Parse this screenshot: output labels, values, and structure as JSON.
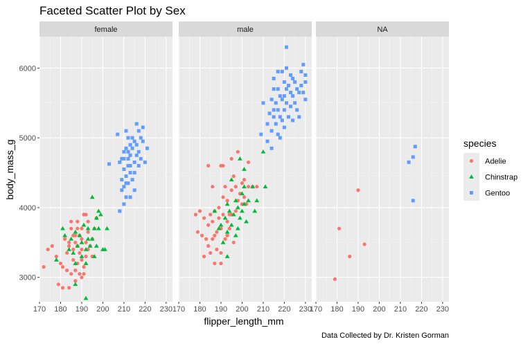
{
  "chart_data": {
    "type": "scatter",
    "title": "Faceted Scatter Plot by Sex",
    "xlabel": "flipper_length_mm",
    "ylabel": "body_mass_g",
    "caption": "Data Collected by Dr. Kristen Gorman",
    "legend_title": "species",
    "legend_position": "right",
    "grid": true,
    "xlim": [
      170,
      233
    ],
    "ylim": [
      2650,
      6450
    ],
    "x_ticks": [
      170,
      180,
      190,
      200,
      210,
      220,
      230
    ],
    "y_ticks": [
      3000,
      4000,
      5000,
      6000
    ],
    "species": [
      {
        "name": "Adelie",
        "color": "#F8766D",
        "shape": "circle"
      },
      {
        "name": "Chinstrap",
        "color": "#00BA38",
        "shape": "triangle"
      },
      {
        "name": "Gentoo",
        "color": "#619CFF",
        "shape": "square"
      }
    ],
    "facets": [
      {
        "label": "female",
        "series": {
          "Adelie": [
            [
              172,
              3150
            ],
            [
              174,
              3400
            ],
            [
              176,
              3450
            ],
            [
              178,
              3300
            ],
            [
              179,
              2900
            ],
            [
              180,
              3200
            ],
            [
              181,
              3150
            ],
            [
              181,
              2850
            ],
            [
              182,
              3550
            ],
            [
              183,
              3350
            ],
            [
              184,
              2850
            ],
            [
              184,
              3450
            ],
            [
              185,
              3700
            ],
            [
              185,
              3050
            ],
            [
              186,
              3600
            ],
            [
              186,
              3250
            ],
            [
              187,
              3500
            ],
            [
              187,
              3100
            ],
            [
              187,
              2950
            ],
            [
              188,
              3800
            ],
            [
              188,
              3450
            ],
            [
              188,
              3200
            ],
            [
              189,
              3600
            ],
            [
              189,
              3350
            ],
            [
              189,
              3050
            ],
            [
              190,
              3550
            ],
            [
              190,
              3400
            ],
            [
              190,
              3250
            ],
            [
              191,
              3900
            ],
            [
              191,
              3150
            ],
            [
              191,
              3050
            ],
            [
              192,
              3500
            ],
            [
              192,
              3300
            ],
            [
              193,
              3650
            ],
            [
              193,
              3800
            ],
            [
              194,
              3450
            ],
            [
              195,
              3300
            ],
            [
              196,
              3700
            ],
            [
              197,
              3850
            ],
            [
              193,
              3400
            ],
            [
              190,
              3700
            ],
            [
              186,
              3400
            ],
            [
              183,
              3100
            ],
            [
              185,
              3800
            ],
            [
              187,
              3600
            ],
            [
              190,
              3000
            ],
            [
              192,
              3900
            ],
            [
              188,
              3700
            ],
            [
              184,
              3500
            ],
            [
              195,
              3550
            ]
          ],
          "Chinstrap": [
            [
              178,
              3250
            ],
            [
              181,
              3700
            ],
            [
              182,
              3600
            ],
            [
              184,
              3400
            ],
            [
              185,
              3550
            ],
            [
              186,
              3350
            ],
            [
              187,
              3650
            ],
            [
              187,
              3200
            ],
            [
              188,
              3450
            ],
            [
              189,
              3600
            ],
            [
              190,
              3300
            ],
            [
              190,
              3500
            ],
            [
              191,
              3750
            ],
            [
              192,
              3200
            ],
            [
              192,
              3400
            ],
            [
              193,
              3550
            ],
            [
              193,
              3700
            ],
            [
              194,
              3450
            ],
            [
              195,
              4150
            ],
            [
              195,
              3550
            ],
            [
              196,
              3700
            ],
            [
              196,
              3300
            ],
            [
              197,
              3450
            ],
            [
              197,
              3850
            ],
            [
              198,
              3950
            ],
            [
              198,
              3700
            ],
            [
              199,
              3900
            ],
            [
              200,
              3400
            ],
            [
              201,
              3400
            ],
            [
              202,
              3700
            ],
            [
              192,
              2700
            ],
            [
              187,
              2900
            ]
          ],
          "Gentoo": [
            [
              203,
              4625
            ],
            [
              207,
              5050
            ],
            [
              208,
              4650
            ],
            [
              208,
              3950
            ],
            [
              209,
              4400
            ],
            [
              209,
              4700
            ],
            [
              210,
              4550
            ],
            [
              210,
              4300
            ],
            [
              210,
              4800
            ],
            [
              211,
              4850
            ],
            [
              211,
              4450
            ],
            [
              211,
              4150
            ],
            [
              212,
              4700
            ],
            [
              212,
              4350
            ],
            [
              212,
              5000
            ],
            [
              213,
              4900
            ],
            [
              213,
              4500
            ],
            [
              213,
              4750
            ],
            [
              214,
              4850
            ],
            [
              214,
              4400
            ],
            [
              215,
              4650
            ],
            [
              215,
              4950
            ],
            [
              215,
              4250
            ],
            [
              216,
              4900
            ],
            [
              216,
              4750
            ],
            [
              216,
              5200
            ],
            [
              217,
              4800
            ],
            [
              217,
              4600
            ],
            [
              218,
              5000
            ],
            [
              218,
              4700
            ],
            [
              219,
              5150
            ],
            [
              219,
              4950
            ],
            [
              220,
              4650
            ],
            [
              221,
              4850
            ],
            [
              211,
              5100
            ],
            [
              212,
              4600
            ],
            [
              210,
              4050
            ],
            [
              209,
              4250
            ],
            [
              214,
              5000
            ],
            [
              213,
              4600
            ],
            [
              212,
              4800
            ],
            [
              215,
              4500
            ],
            [
              217,
              5100
            ],
            [
              210,
              4700
            ],
            [
              211,
              4350
            ],
            [
              213,
              4150
            ]
          ]
        }
      },
      {
        "label": "male",
        "series": {
          "Adelie": [
            [
              178,
              3900
            ],
            [
              179,
              3650
            ],
            [
              180,
              3950
            ],
            [
              181,
              3600
            ],
            [
              182,
              3300
            ],
            [
              182,
              3850
            ],
            [
              183,
              3550
            ],
            [
              184,
              3750
            ],
            [
              184,
              3450
            ],
            [
              185,
              3900
            ],
            [
              185,
              3350
            ],
            [
              186,
              3800
            ],
            [
              186,
              4300
            ],
            [
              186,
              3550
            ],
            [
              187,
              3950
            ],
            [
              187,
              3200
            ],
            [
              188,
              3650
            ],
            [
              188,
              3400
            ],
            [
              189,
              4000
            ],
            [
              189,
              3850
            ],
            [
              190,
              4600
            ],
            [
              190,
              3700
            ],
            [
              190,
              3350
            ],
            [
              191,
              4150
            ],
            [
              191,
              3900
            ],
            [
              192,
              4300
            ],
            [
              192,
              3550
            ],
            [
              193,
              4100
            ],
            [
              193,
              3800
            ],
            [
              194,
              3700
            ],
            [
              195,
              4250
            ],
            [
              195,
              3900
            ],
            [
              196,
              4450
            ],
            [
              196,
              3500
            ],
            [
              197,
              4300
            ],
            [
              197,
              3950
            ],
            [
              198,
              4100
            ],
            [
              199,
              4200
            ],
            [
              200,
              4050
            ],
            [
              201,
              4400
            ],
            [
              201,
              4150
            ],
            [
              202,
              4050
            ],
            [
              203,
              4300
            ],
            [
              205,
              4300
            ],
            [
              207,
              4300
            ],
            [
              195,
              4700
            ],
            [
              198,
              4800
            ],
            [
              200,
              4350
            ],
            [
              193,
              3600
            ],
            [
              190,
              3200
            ],
            [
              187,
              3600
            ],
            [
              184,
              4600
            ],
            [
              203,
              4650
            ],
            [
              191,
              4600
            ],
            [
              194,
              3900
            ]
          ],
          "Chinstrap": [
            [
              187,
              3950
            ],
            [
              189,
              3700
            ],
            [
              190,
              3750
            ],
            [
              191,
              3500
            ],
            [
              192,
              3850
            ],
            [
              193,
              4050
            ],
            [
              193,
              3300
            ],
            [
              194,
              3950
            ],
            [
              195,
              3750
            ],
            [
              195,
              4400
            ],
            [
              196,
              3900
            ],
            [
              197,
              4100
            ],
            [
              197,
              3600
            ],
            [
              198,
              4000
            ],
            [
              198,
              3700
            ],
            [
              199,
              3850
            ],
            [
              200,
              4200
            ],
            [
              200,
              3950
            ],
            [
              201,
              4050
            ],
            [
              201,
              4550
            ],
            [
              202,
              3800
            ],
            [
              203,
              4100
            ],
            [
              205,
              4300
            ],
            [
              206,
              3950
            ],
            [
              207,
              4100
            ],
            [
              210,
              4800
            ],
            [
              211,
              4300
            ],
            [
              199,
              4700
            ],
            [
              201,
              4300
            ],
            [
              193,
              3650
            ]
          ],
          "Gentoo": [
            [
              209,
              5050
            ],
            [
              210,
              5500
            ],
            [
              212,
              5200
            ],
            [
              212,
              4950
            ],
            [
              213,
              5350
            ],
            [
              214,
              5550
            ],
            [
              214,
              5100
            ],
            [
              215,
              5400
            ],
            [
              215,
              5700
            ],
            [
              215,
              5850
            ],
            [
              216,
              5500
            ],
            [
              216,
              5200
            ],
            [
              217,
              5700
            ],
            [
              217,
              5400
            ],
            [
              217,
              5050
            ],
            [
              218,
              5600
            ],
            [
              218,
              5300
            ],
            [
              219,
              5950
            ],
            [
              219,
              5550
            ],
            [
              219,
              5250
            ],
            [
              220,
              5800
            ],
            [
              220,
              5400
            ],
            [
              220,
              5150
            ],
            [
              221,
              6000
            ],
            [
              221,
              5700
            ],
            [
              221,
              5500
            ],
            [
              222,
              5750
            ],
            [
              222,
              5300
            ],
            [
              223,
              5650
            ],
            [
              223,
              5900
            ],
            [
              224,
              5600
            ],
            [
              224,
              5250
            ],
            [
              225,
              5800
            ],
            [
              225,
              5500
            ],
            [
              226,
              5700
            ],
            [
              226,
              5400
            ],
            [
              227,
              5650
            ],
            [
              228,
              5950
            ],
            [
              228,
              5750
            ],
            [
              229,
              5650
            ],
            [
              229,
              6050
            ],
            [
              230,
              5550
            ],
            [
              230,
              5800
            ],
            [
              221,
              6300
            ],
            [
              214,
              4850
            ],
            [
              218,
              5000
            ],
            [
              215,
              5300
            ],
            [
              220,
              5600
            ],
            [
              224,
              5850
            ],
            [
              227,
              5300
            ],
            [
              230,
              5900
            ],
            [
              223,
              5450
            ],
            [
              217,
              5950
            ]
          ]
        }
      },
      {
        "label": "NA",
        "series": {
          "Adelie": [
            [
              179,
              2975
            ],
            [
              181,
              3700
            ],
            [
              186,
              3300
            ],
            [
              190,
              4250
            ],
            [
              193,
              3475
            ]
          ],
          "Chinstrap": [],
          "Gentoo": [
            [
              214,
              4650
            ],
            [
              216,
              4725
            ],
            [
              216,
              4100
            ],
            [
              217,
              4875
            ]
          ]
        }
      }
    ]
  }
}
